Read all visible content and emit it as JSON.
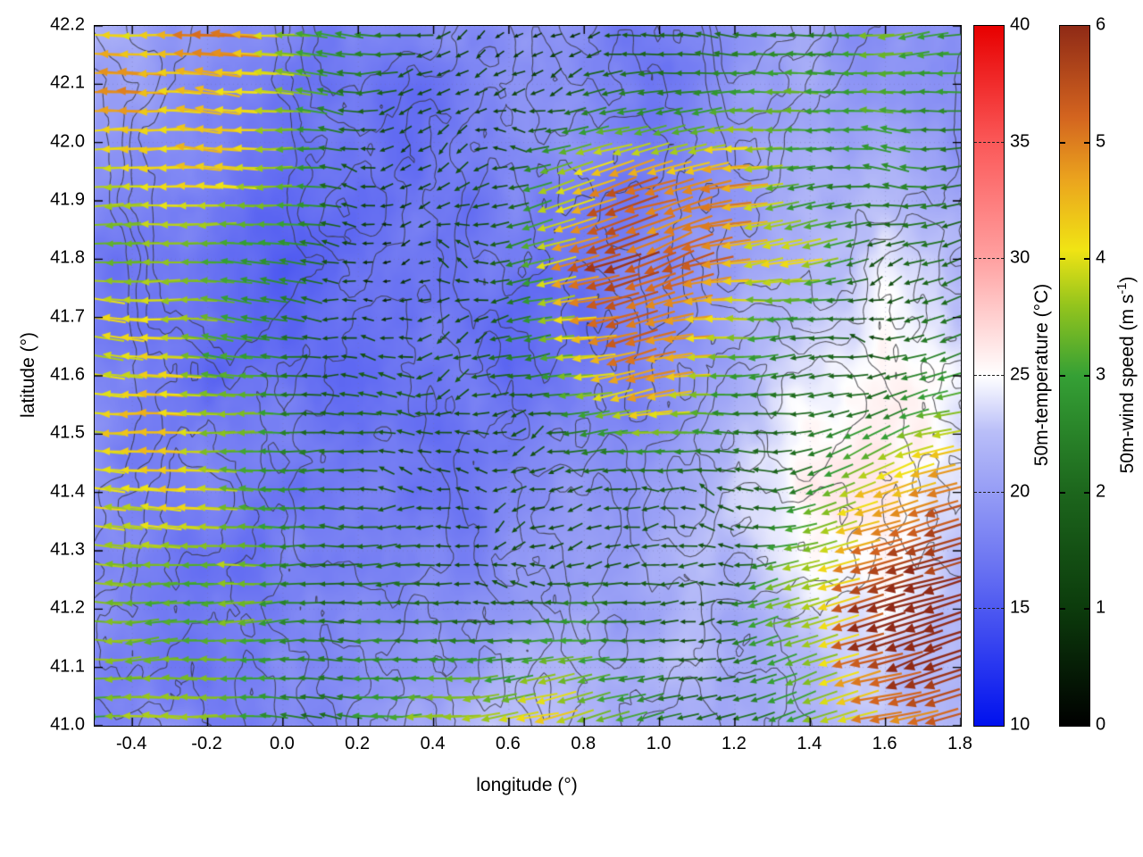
{
  "figure": {
    "xlabel": "longitude (°)",
    "ylabel": "latitude (°)",
    "x_tick_labels": [
      "-0.4",
      "-0.2",
      "0.0",
      "0.2",
      "0.4",
      "0.6",
      "0.8",
      "1.0",
      "1.2",
      "1.4",
      "1.6",
      "1.8"
    ],
    "y_tick_labels": [
      "41.0",
      "41.1",
      "41.2",
      "41.3",
      "41.4",
      "41.5",
      "41.6",
      "41.7",
      "41.8",
      "41.9",
      "42.0",
      "42.1",
      "42.2"
    ],
    "colorbars": [
      {
        "id": "temp",
        "title": "50m-temperature (°C)",
        "min": 10,
        "max": 40,
        "tick_labels": [
          "10",
          "15",
          "20",
          "25",
          "30",
          "35",
          "40"
        ],
        "dashed": true,
        "stops": [
          [
            0,
            "#0011ee"
          ],
          [
            0.23,
            "#6b74f2"
          ],
          [
            0.42,
            "#b9bef8"
          ],
          [
            0.5,
            "#ffffff"
          ],
          [
            0.67,
            "#ff9f9f"
          ],
          [
            0.83,
            "#fb5a5a"
          ],
          [
            1,
            "#e70000"
          ]
        ]
      },
      {
        "id": "wind",
        "title_prefix": "50m-wind speed (m s",
        "title_sup": "-1",
        "title_suffix": ")",
        "min": 0,
        "max": 6,
        "tick_labels": [
          "0",
          "1",
          "2",
          "3",
          "4",
          "5",
          "6"
        ],
        "dashed": false,
        "stops": [
          [
            0,
            "#000000"
          ],
          [
            0.17,
            "#0c3c0c"
          ],
          [
            0.33,
            "#1c651c"
          ],
          [
            0.5,
            "#35a035"
          ],
          [
            0.6,
            "#93c41d"
          ],
          [
            0.68,
            "#f0e414"
          ],
          [
            0.78,
            "#eba41e"
          ],
          [
            0.87,
            "#d3641f"
          ],
          [
            1,
            "#8f2a16"
          ]
        ]
      }
    ]
  },
  "chart_data": {
    "type": "heatmap",
    "title": "",
    "xlabel": "longitude (°)",
    "ylabel": "latitude (°)",
    "xlim": [
      -0.5,
      1.8
    ],
    "ylim": [
      41.0,
      42.2
    ],
    "x_ticks": [
      -0.4,
      -0.2,
      0.0,
      0.2,
      0.4,
      0.6,
      0.8,
      1.0,
      1.2,
      1.4,
      1.6,
      1.8
    ],
    "y_ticks": [
      41.0,
      41.1,
      41.2,
      41.3,
      41.4,
      41.5,
      41.6,
      41.7,
      41.8,
      41.9,
      42.0,
      42.1,
      42.2
    ],
    "overlays": [
      "terrain-contours",
      "wind-vectors"
    ],
    "temperature": {
      "units": "°C",
      "color_range": [
        10,
        40
      ],
      "grid_order": "rows north (42.2) to south (41.0), cols west (-0.5) to east (1.8)",
      "values": [
        [
          21,
          20,
          19,
          18,
          18,
          19,
          19,
          18,
          19,
          20,
          19,
          19
        ],
        [
          20,
          19,
          18,
          18,
          17,
          18,
          19,
          18,
          19,
          20,
          20,
          19
        ],
        [
          19,
          18,
          17,
          17,
          17,
          18,
          18,
          18,
          19,
          21,
          22,
          20
        ],
        [
          18,
          17,
          16,
          17,
          17,
          18,
          18,
          19,
          20,
          22,
          24,
          22
        ],
        [
          18,
          17,
          16,
          16,
          17,
          17,
          18,
          19,
          20,
          23,
          25,
          23
        ],
        [
          19,
          18,
          17,
          16,
          16,
          17,
          18,
          19,
          21,
          24,
          26,
          24
        ],
        [
          19,
          18,
          17,
          16,
          16,
          17,
          19,
          20,
          22,
          25,
          26,
          24
        ],
        [
          18,
          18,
          17,
          17,
          17,
          18,
          20,
          21,
          22,
          24,
          25,
          23
        ],
        [
          19,
          18,
          18,
          18,
          19,
          20,
          21,
          22,
          22,
          23,
          24,
          22
        ],
        [
          19,
          19,
          18,
          19,
          20,
          22,
          22,
          21,
          21,
          22,
          23,
          22
        ]
      ]
    },
    "wind": {
      "units": "m/s",
      "color_range": [
        0,
        6
      ],
      "grid_order": "rows north to south, cols west to east; u eastward, v northward (arrows point mostly westward)",
      "u": [
        [
          -4.5,
          -4.5,
          -4.0,
          -3.0,
          -2.0,
          -1.5,
          -1.0,
          -1.5,
          -2.0,
          -2.5,
          -3.0,
          -3.0
        ],
        [
          -4.8,
          -4.5,
          -3.8,
          -2.5,
          -1.5,
          -1.2,
          -1.5,
          -2.5,
          -3.0,
          -3.5,
          -3.0,
          -2.5
        ],
        [
          -4.0,
          -4.0,
          -3.5,
          -2.0,
          -1.2,
          -1.5,
          -3.5,
          -5.0,
          -4.5,
          -3.0,
          -2.0,
          -2.0
        ],
        [
          -4.0,
          -3.8,
          -3.0,
          -1.5,
          -1.0,
          -1.5,
          -4.5,
          -5.3,
          -5.0,
          -3.5,
          -1.5,
          -2.5
        ],
        [
          -4.2,
          -4.0,
          -3.0,
          -1.5,
          -1.0,
          -1.2,
          -3.5,
          -5.0,
          -4.0,
          -2.0,
          -1.5,
          -3.0
        ],
        [
          -4.2,
          -4.0,
          -3.5,
          -2.0,
          -1.2,
          -1.0,
          -2.0,
          -3.5,
          -3.0,
          -1.5,
          -2.0,
          -4.0
        ],
        [
          -4.0,
          -3.8,
          -3.0,
          -2.0,
          -1.0,
          -1.0,
          -1.5,
          -2.0,
          -2.0,
          -2.5,
          -4.5,
          -5.0
        ],
        [
          -3.8,
          -3.5,
          -3.0,
          -2.0,
          -1.5,
          -1.2,
          -1.5,
          -1.5,
          -1.5,
          -4.0,
          -5.2,
          -5.5
        ],
        [
          -3.5,
          -3.5,
          -3.0,
          -2.5,
          -2.0,
          -2.5,
          -3.0,
          -2.0,
          -1.5,
          -3.5,
          -5.5,
          -5.8
        ],
        [
          -3.0,
          -3.2,
          -2.8,
          -2.5,
          -3.0,
          -3.5,
          -4.0,
          -3.0,
          -1.5,
          -3.0,
          -5.0,
          -5.5
        ]
      ],
      "v": [
        [
          0.5,
          0.3,
          0,
          0,
          0,
          0,
          0,
          0,
          0,
          0,
          -0.3,
          -0.5
        ],
        [
          0.3,
          0.2,
          0,
          0,
          0,
          0,
          -0.3,
          -0.5,
          -0.5,
          0,
          0,
          0
        ],
        [
          0,
          0,
          0,
          0,
          0,
          0,
          -1.0,
          -1.5,
          -1.0,
          -0.5,
          0,
          0
        ],
        [
          0,
          0,
          0,
          0,
          0,
          0,
          -1.2,
          -1.5,
          -1.0,
          -0.5,
          0,
          -0.5
        ],
        [
          0.2,
          0,
          0,
          0,
          0,
          0,
          -0.5,
          -1.0,
          -0.5,
          0,
          0,
          -0.8
        ],
        [
          0.3,
          0.2,
          0,
          0,
          0,
          0,
          0,
          -0.5,
          0,
          0,
          -0.5,
          -1.0
        ],
        [
          0.2,
          0,
          0,
          0,
          0,
          0,
          0,
          0,
          0,
          -0.5,
          -1.5,
          -1.5
        ],
        [
          0,
          0,
          0,
          0,
          0,
          0,
          0,
          0,
          0,
          -1.0,
          -1.8,
          -1.8
        ],
        [
          0,
          0,
          0,
          0,
          -0.3,
          -0.5,
          -0.5,
          0,
          0,
          -1.0,
          -1.8,
          -2.0
        ],
        [
          0,
          0,
          0,
          0,
          -0.5,
          -0.8,
          -0.8,
          -0.5,
          0,
          -0.8,
          -1.5,
          -1.8
        ]
      ]
    },
    "contours": {
      "color": "#37373c",
      "note": "gray terrain contour lines overlaid on temperature field"
    }
  },
  "render": {
    "arrow_cols": 46,
    "arrow_rows": 37,
    "contour_levels": [
      0.4,
      0.47,
      0.54,
      0.61
    ]
  }
}
